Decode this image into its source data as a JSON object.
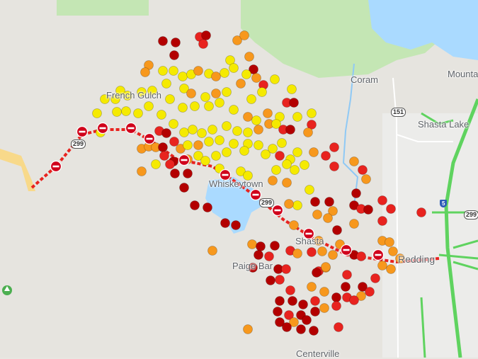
{
  "map": {
    "places": {
      "french_gulch": "French Gulch",
      "coram": "Coram",
      "mountain_gate": "Mounta",
      "shasta_lake": "Shasta Lake",
      "whiskeytown": "Whiskeytown",
      "shasta": "Shasta",
      "paige_bar": "Paige Bar",
      "redding": "Redding",
      "centerville": "Centerville"
    },
    "routes": {
      "sr299_a": "299",
      "sr299_b": "299",
      "sr299_c": "299",
      "sr151": "151",
      "i5": "5"
    },
    "colors": {
      "marker_yellow": "#f5ea00",
      "marker_orange": "#f7981d",
      "marker_red": "#e8231f",
      "marker_darkred": "#b30000",
      "closure": "#d0021b",
      "water": "#aadaff",
      "forest": "#c0e8b0",
      "highway": "#5fd35f"
    },
    "icons": [
      "road-closure-icon",
      "map-marker-icon",
      "park-icon"
    ]
  }
}
